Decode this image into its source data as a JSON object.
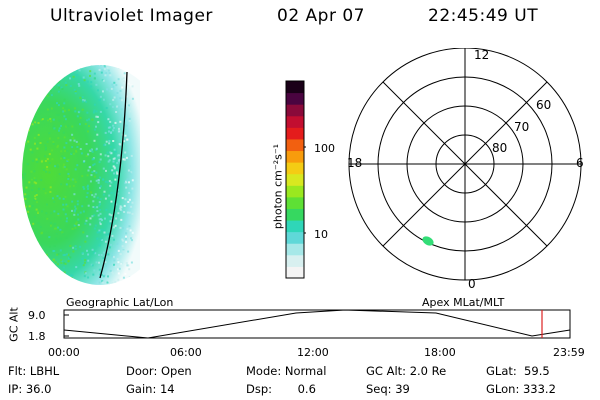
{
  "header": {
    "title": "Ultraviolet Imager",
    "date": "02 Apr 07",
    "time": "22:45:49 UT"
  },
  "colorbar": {
    "label": "photon cm⁻²s⁻¹",
    "ticks": [
      "100",
      "10"
    ],
    "scale": "log",
    "colors": [
      "#f4f4f4",
      "#d8f0f0",
      "#a6e8e8",
      "#5fd8d8",
      "#2fd6b8",
      "#36d860",
      "#5ee035",
      "#9ae81f",
      "#d8e820",
      "#f4cc14",
      "#f89c0c",
      "#f26010",
      "#e41c1c",
      "#c20e30",
      "#8a0a3a",
      "#4a0440",
      "#1a0018"
    ]
  },
  "polar": {
    "hours": [
      "12",
      "18",
      "6",
      "0"
    ],
    "lats": [
      "60",
      "70",
      "80"
    ],
    "spot_color": "#33dd77"
  },
  "timeline": {
    "left_label": "Geographic Lat/Lon",
    "right_label": "Apex MLat/MLT",
    "yaxis_label": "GC Alt",
    "yticks": [
      "9.0",
      "1.8"
    ],
    "xticks": [
      "00:00",
      "06:00",
      "12:00",
      "18:00",
      "23:59"
    ],
    "marker_time": "22:45:49",
    "marker_color": "#dd2222"
  },
  "info": {
    "flt": "Flt: LBHL",
    "ip": "IP: 36.0",
    "door": "Door: Open",
    "gain": "Gain: 14",
    "mode": "Mode: Normal",
    "dsp": "Dsp:       0.6",
    "gcalt": "GC Alt: 2.0 Re",
    "seq": "Seq: 39",
    "glat": "GLat:  59.5",
    "glon": "GLon: 333.2"
  }
}
